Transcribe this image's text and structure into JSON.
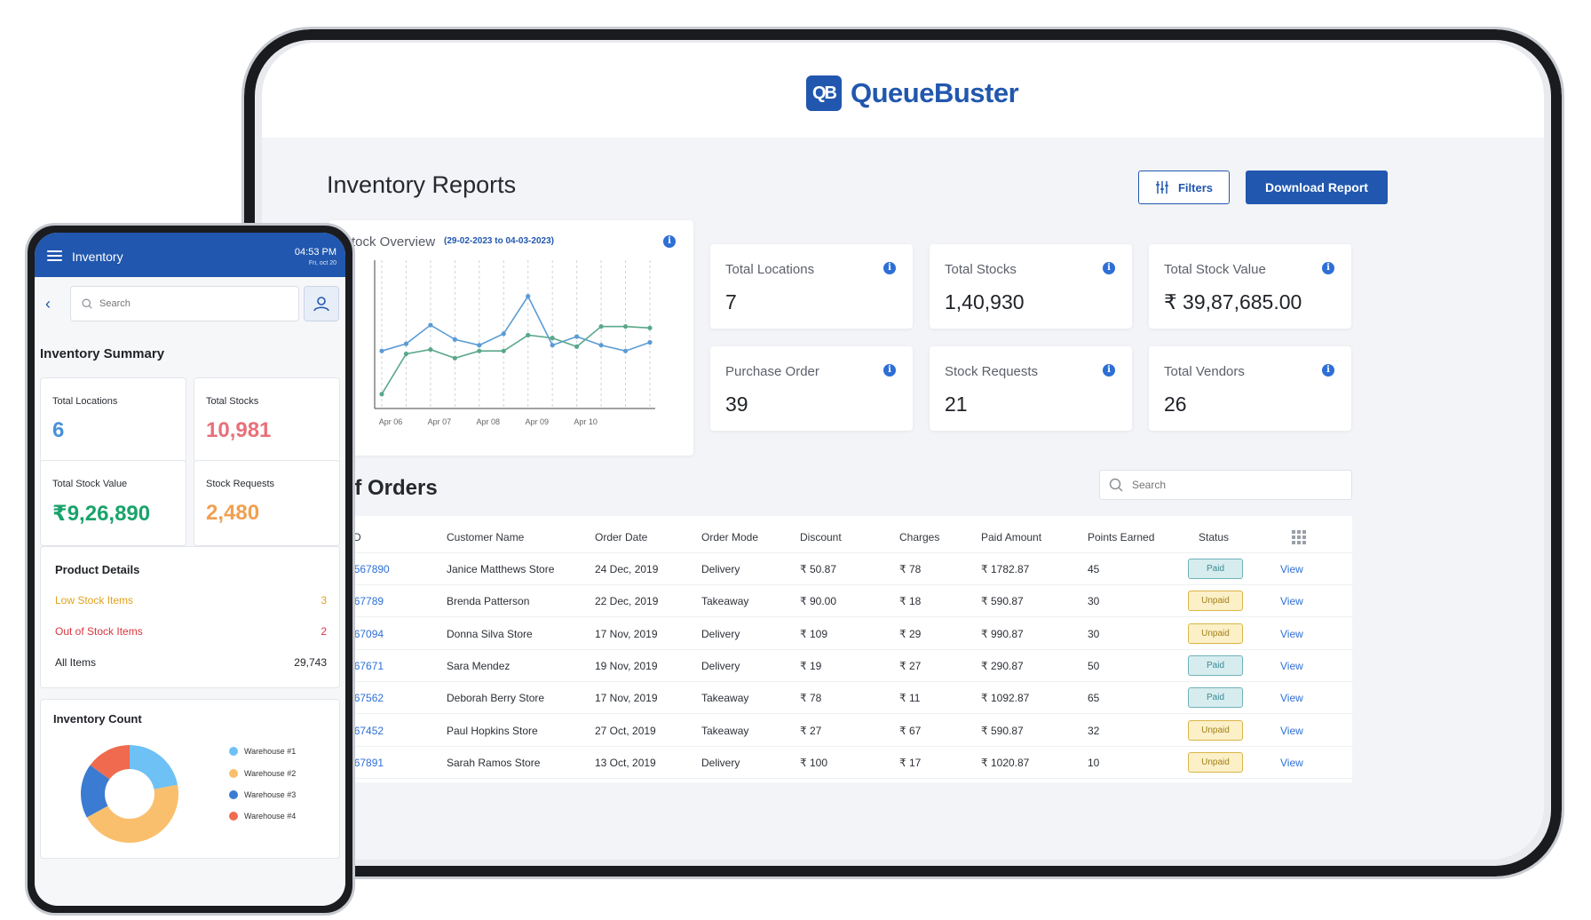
{
  "tablet": {
    "brand": {
      "logo_mark": "QB",
      "name": "QueueBuster"
    },
    "page_title": "Inventory Reports",
    "filters_label": "Filters",
    "download_label": "Download Report",
    "stock_overview": {
      "title": "Stock Overview",
      "date_range": "(29-02-2023 to 04-03-2023)"
    },
    "stats": [
      {
        "label": "Total Locations",
        "value": "7"
      },
      {
        "label": "Total Stocks",
        "value": "1,40,930"
      },
      {
        "label": "Total Stock Value",
        "value": "₹ 39,87,685.00"
      },
      {
        "label": "Purchase Order",
        "value": "39"
      },
      {
        "label": "Stock Requests",
        "value": "21"
      },
      {
        "label": "Total Vendors",
        "value": "26"
      }
    ],
    "orders": {
      "title": "t of Orders",
      "search_placeholder": "Search",
      "columns": [
        "rder ID",
        "Customer Name",
        "Order Date",
        "Order Mode",
        "Discount",
        "Charges",
        "Paid Amount",
        "Points Earned",
        "Status"
      ],
      "view_label": "View",
      "rows": [
        {
          "id": "R124567890",
          "customer": "Janice Matthews Store",
          "date": "24 Dec, 2019",
          "mode": "Delivery",
          "discount": "₹ 50.87",
          "charges": "₹ 78",
          "paid": "₹ 1782.87",
          "points": "45",
          "status": "Paid"
        },
        {
          "id": "R34567789",
          "customer": "Brenda Patterson",
          "date": "22 Dec, 2019",
          "mode": "Takeaway",
          "discount": "₹ 90.00",
          "charges": "₹ 18",
          "paid": "₹ 590.87",
          "points": "30",
          "status": "Unpaid"
        },
        {
          "id": "R24567094",
          "customer": "Donna Silva Store",
          "date": "17 Nov, 2019",
          "mode": "Delivery",
          "discount": "₹ 109",
          "charges": "₹ 29",
          "paid": "₹ 990.87",
          "points": "30",
          "status": "Unpaid"
        },
        {
          "id": "R34567671",
          "customer": "Sara Mendez",
          "date": "19 Nov, 2019",
          "mode": "Delivery",
          "discount": "₹ 19",
          "charges": "₹ 27",
          "paid": "₹ 290.87",
          "points": "50",
          "status": "Paid"
        },
        {
          "id": "R34567562",
          "customer": "Deborah Berry Store",
          "date": "17 Nov, 2019",
          "mode": "Takeaway",
          "discount": "₹ 78",
          "charges": "₹ 11",
          "paid": "₹ 1092.87",
          "points": "65",
          "status": "Paid"
        },
        {
          "id": "R34567452",
          "customer": "Paul Hopkins Store",
          "date": "27 Oct, 2019",
          "mode": "Takeaway",
          "discount": "₹ 27",
          "charges": "₹ 67",
          "paid": "₹ 590.87",
          "points": "32",
          "status": "Unpaid"
        },
        {
          "id": "R34567891",
          "customer": "Sarah Ramos Store",
          "date": "13 Oct, 2019",
          "mode": "Delivery",
          "discount": "₹ 100",
          "charges": "₹ 17",
          "paid": "₹ 1020.87",
          "points": "10",
          "status": "Unpaid"
        }
      ]
    }
  },
  "phone": {
    "app_title": "Inventory",
    "time": "04:53 PM",
    "date": "Fri, oct 20",
    "search_placeholder": "Search",
    "summary_title": "Inventory Summary",
    "stats": [
      {
        "label": "Total Locations",
        "value": "6",
        "color": "#4a90d9"
      },
      {
        "label": "Total Stocks",
        "value": "10,981",
        "color": "#e8707a"
      },
      {
        "label": "Total Stock Value",
        "value": "₹9,26,890",
        "color": "#1aa36b"
      },
      {
        "label": "Stock Requests",
        "value": "2,480",
        "color": "#f0a050"
      }
    ],
    "product_details": {
      "title": "Product Details",
      "rows": [
        {
          "label": "Low Stock Items",
          "value": "3",
          "color": "#e0a21b"
        },
        {
          "label": "Out of Stock Items",
          "value": "2",
          "color": "#d9363e"
        },
        {
          "label": "All Items",
          "value": "29,743",
          "color": "#1f2227"
        }
      ]
    },
    "inventory_count": {
      "title": "Inventory Count",
      "legend": [
        {
          "label": "Warehouse #1",
          "color": "#6ec1f5"
        },
        {
          "label": "Warehouse #2",
          "color": "#f9bf6c"
        },
        {
          "label": "Warehouse #3",
          "color": "#3b7bd1"
        },
        {
          "label": "Warehouse #4",
          "color": "#ef6a4e"
        }
      ]
    }
  },
  "chart_data": [
    {
      "type": "line",
      "title": "Stock Overview",
      "categories": [
        "Apr 06",
        "",
        "Apr 07",
        "",
        "Apr 08",
        "",
        "Apr 09",
        "",
        "Apr 10",
        "",
        "",
        ""
      ],
      "series": [
        {
          "color": "#5b9bd5",
          "values": [
            40,
            45,
            58,
            48,
            44,
            52,
            78,
            44,
            50,
            44,
            40,
            46
          ]
        },
        {
          "color": "#5aa88a",
          "values": [
            10,
            38,
            41,
            35,
            40,
            40,
            51,
            49,
            43,
            57,
            57,
            56
          ]
        }
      ],
      "ylim": [
        0,
        100
      ],
      "grid": "vertical-dashed"
    },
    {
      "type": "pie",
      "title": "Inventory Count",
      "categories": [
        "Warehouse #1",
        "Warehouse #2",
        "Warehouse #3",
        "Warehouse #4"
      ],
      "values": [
        22,
        45,
        18,
        15
      ],
      "colors": [
        "#6ec1f5",
        "#f9bf6c",
        "#3b7bd1",
        "#ef6a4e"
      ],
      "donut": true
    }
  ]
}
